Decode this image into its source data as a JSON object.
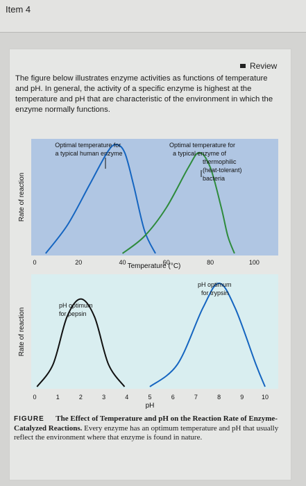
{
  "header": {
    "item_title": "Item 4"
  },
  "review": {
    "label": "Review"
  },
  "intro": {
    "text": "The figure below illustrates enzyme activities as functions of temperature and pH. In general, the activity of a specific enzyme is highest at the temperature and pH that are characteristic of the environment in which the enzyme normally functions."
  },
  "chart_data": [
    {
      "type": "line",
      "xlabel": "Temperature (°C)",
      "ylabel": "Rate of reaction",
      "xlim": [
        0,
        110
      ],
      "ticks": [
        "0",
        "20",
        "40",
        "60",
        "80",
        "100"
      ],
      "tick_values": [
        0,
        20,
        40,
        60,
        80,
        100
      ],
      "background": "#b0c6e3",
      "series": [
        {
          "x": [
            5,
            15,
            25,
            33,
            37,
            41,
            45,
            50,
            55
          ],
          "y": [
            0,
            0.25,
            0.6,
            0.88,
            0.95,
            0.88,
            0.6,
            0.2,
            0
          ],
          "color": "#1565c0"
        },
        {
          "x": [
            40,
            50,
            60,
            70,
            75,
            80,
            85,
            88,
            91
          ],
          "y": [
            0,
            0.15,
            0.4,
            0.75,
            0.88,
            0.75,
            0.4,
            0.15,
            0
          ],
          "color": "#2e8b3c"
        }
      ],
      "annotations": [
        {
          "lines": [
            "Optimal temperature for",
            "a typical human enzyme"
          ]
        },
        {
          "lines": [
            "Optimal temperature for",
            "a typical enzyme of",
            "thermophilic",
            "(heat-tolerant)",
            "bacteria"
          ]
        }
      ]
    },
    {
      "type": "line",
      "xlabel": "pH",
      "ylabel": "Rate of reaction",
      "xlim": [
        0,
        10
      ],
      "ticks": [
        "0",
        "1",
        "2",
        "3",
        "4",
        "5",
        "6",
        "7",
        "8",
        "9",
        "10"
      ],
      "tick_values": [
        0,
        1,
        2,
        3,
        4,
        5,
        6,
        7,
        8,
        9,
        10
      ],
      "background": "#d9eef0",
      "series": [
        {
          "x": [
            0.1,
            0.8,
            1.4,
            2.0,
            2.6,
            3.2,
            3.9
          ],
          "y": [
            0,
            0.2,
            0.62,
            0.78,
            0.62,
            0.2,
            0
          ],
          "color": "#111111"
        },
        {
          "x": [
            5.0,
            6.2,
            7.3,
            8.0,
            8.7,
            9.6,
            10.0
          ],
          "y": [
            0,
            0.2,
            0.7,
            0.92,
            0.7,
            0.2,
            0
          ],
          "color": "#1565c0"
        }
      ],
      "annotations": [
        {
          "lines": [
            "pH optimum",
            "for pepsin"
          ]
        },
        {
          "lines": [
            "pH optimum",
            "for trypsin"
          ]
        }
      ]
    }
  ],
  "caption": {
    "label": "FIGURE",
    "title": "The Effect of Temperature and pH on the Reaction Rate of Enzyme-Catalyzed Reactions.",
    "body": "Every enzyme has an optimum temperature and pH that usually reflect the environment where that enzyme is found in nature."
  }
}
